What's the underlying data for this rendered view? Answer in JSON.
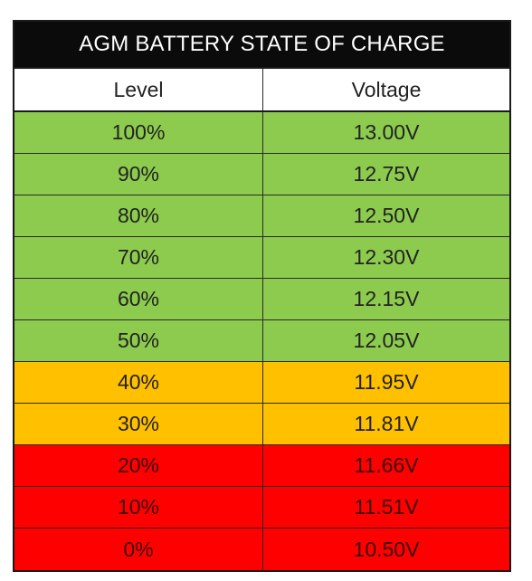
{
  "table": {
    "title": "AGM BATTERY STATE OF CHARGE",
    "headers": {
      "level": "Level",
      "voltage": "Voltage"
    },
    "colors": {
      "green": "#8ccb4e",
      "amber": "#ffc000",
      "red": "#ff0000"
    },
    "rows": [
      {
        "level": "100%",
        "voltage": "13.00V",
        "status": "green"
      },
      {
        "level": "90%",
        "voltage": "12.75V",
        "status": "green"
      },
      {
        "level": "80%",
        "voltage": "12.50V",
        "status": "green"
      },
      {
        "level": "70%",
        "voltage": "12.30V",
        "status": "green"
      },
      {
        "level": "60%",
        "voltage": "12.15V",
        "status": "green"
      },
      {
        "level": "50%",
        "voltage": "12.05V",
        "status": "green"
      },
      {
        "level": "40%",
        "voltage": "11.95V",
        "status": "amber"
      },
      {
        "level": "30%",
        "voltage": "11.81V",
        "status": "amber"
      },
      {
        "level": "20%",
        "voltage": "11.66V",
        "status": "red"
      },
      {
        "level": "10%",
        "voltage": "11.51V",
        "status": "red"
      },
      {
        "level": "0%",
        "voltage": "10.50V",
        "status": "red"
      }
    ]
  }
}
